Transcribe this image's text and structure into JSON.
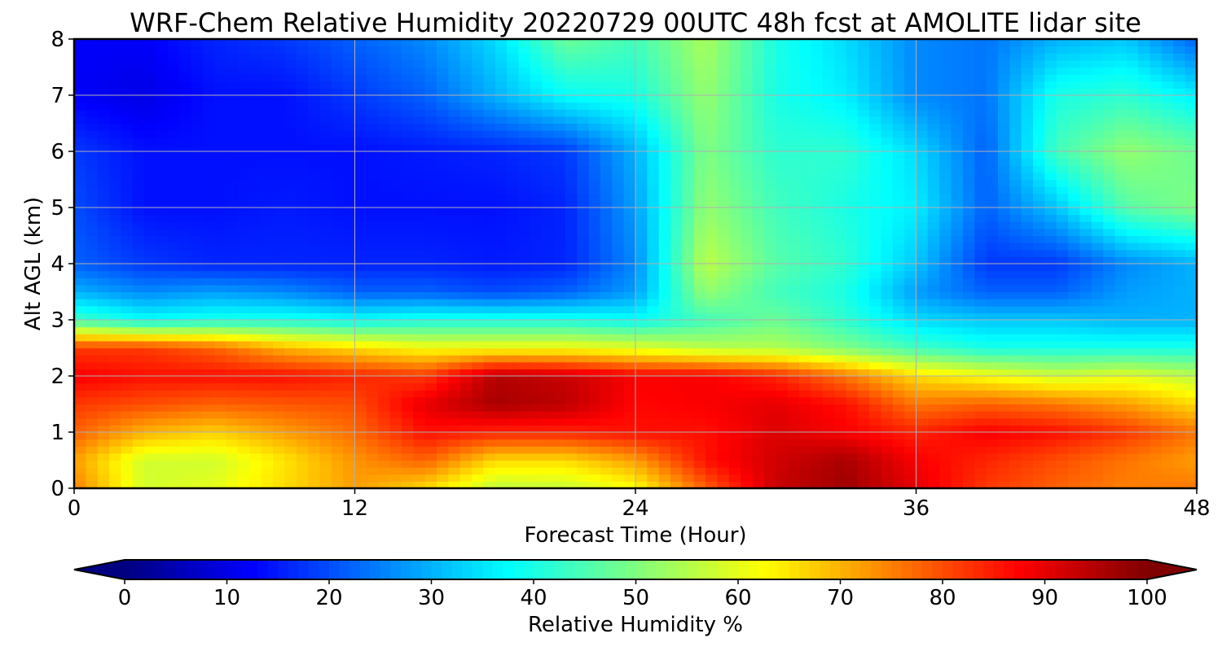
{
  "chart_data": {
    "type": "heatmap",
    "title": "WRF-Chem Relative Humidity 20220729 00UTC 48h fcst at AMOLITE lidar site",
    "xlabel": "Forecast Time (Hour)",
    "ylabel": "Alt AGL (km)",
    "xlim": [
      0,
      48
    ],
    "ylim": [
      0,
      8
    ],
    "x_ticks": [
      "0",
      "12",
      "24",
      "36",
      "48"
    ],
    "y_ticks": [
      "0",
      "1",
      "2",
      "3",
      "4",
      "5",
      "6",
      "7",
      "8"
    ],
    "grid": true,
    "colormap": "jet",
    "colorbar": {
      "label": "Relative Humidity %",
      "range": [
        0,
        100
      ],
      "ticks": [
        "0",
        "10",
        "20",
        "30",
        "40",
        "50",
        "60",
        "70",
        "80",
        "90",
        "100"
      ],
      "extend": "both",
      "placement": "bottom"
    },
    "x_hours": [
      0,
      3,
      6,
      9,
      12,
      15,
      18,
      21,
      24,
      27,
      30,
      33,
      36,
      39,
      42,
      45,
      48
    ],
    "altitudes_km": [
      0,
      0.5,
      1,
      1.5,
      2,
      2.5,
      3,
      3.5,
      4,
      5,
      6,
      7,
      8
    ],
    "rh_percent": [
      [
        75,
        58,
        60,
        66,
        72,
        66,
        56,
        57,
        62,
        78,
        93,
        97,
        90,
        82,
        78,
        75,
        76
      ],
      [
        72,
        58,
        58,
        65,
        73,
        78,
        66,
        66,
        72,
        86,
        92,
        96,
        88,
        84,
        80,
        76,
        72
      ],
      [
        78,
        70,
        67,
        72,
        77,
        86,
        84,
        84,
        86,
        86,
        91,
        88,
        84,
        88,
        86,
        82,
        76
      ],
      [
        82,
        80,
        78,
        79,
        80,
        90,
        96,
        94,
        87,
        88,
        90,
        86,
        76,
        78,
        76,
        72,
        66
      ],
      [
        88,
        86,
        86,
        86,
        84,
        82,
        95,
        93,
        88,
        88,
        84,
        76,
        66,
        62,
        58,
        60,
        56
      ],
      [
        82,
        82,
        78,
        70,
        66,
        62,
        62,
        62,
        60,
        56,
        55,
        50,
        44,
        40,
        40,
        40,
        40
      ],
      [
        44,
        38,
        40,
        40,
        38,
        40,
        40,
        40,
        38,
        44,
        48,
        42,
        34,
        32,
        32,
        30,
        30
      ],
      [
        30,
        26,
        28,
        26,
        22,
        22,
        20,
        22,
        28,
        52,
        44,
        40,
        28,
        22,
        22,
        28,
        30
      ],
      [
        22,
        18,
        16,
        16,
        16,
        16,
        15,
        16,
        26,
        56,
        46,
        42,
        32,
        18,
        18,
        26,
        30
      ],
      [
        20,
        14,
        14,
        15,
        14,
        14,
        14,
        16,
        28,
        52,
        44,
        40,
        36,
        22,
        32,
        46,
        50
      ],
      [
        18,
        14,
        14,
        14,
        14,
        15,
        16,
        18,
        30,
        50,
        42,
        42,
        34,
        22,
        44,
        52,
        48
      ],
      [
        12,
        10,
        14,
        14,
        18,
        22,
        30,
        38,
        40,
        52,
        40,
        36,
        26,
        24,
        40,
        42,
        36
      ],
      [
        12,
        12,
        16,
        18,
        22,
        26,
        34,
        48,
        44,
        54,
        40,
        34,
        26,
        24,
        30,
        32,
        22
      ]
    ]
  }
}
